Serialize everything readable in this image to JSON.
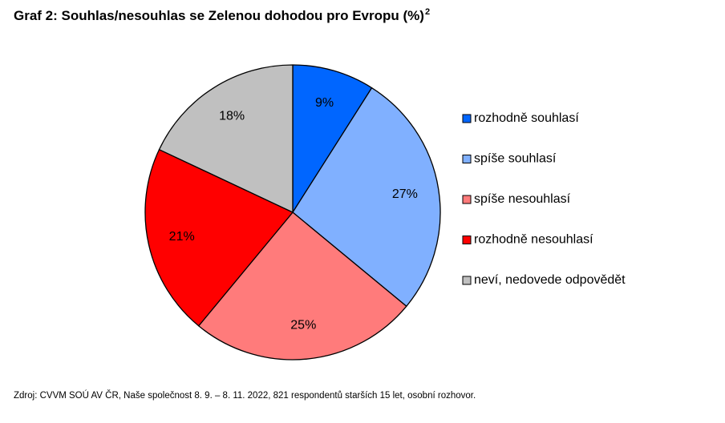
{
  "title": "Graf 2: Souhlas/nesouhlas se Zelenou dohodou pro Evropu (%)",
  "title_superscript": "2",
  "source": "Zdroj: CVVM SOÚ AV ČR, Naše společnost 8. 9. – 8. 11. 2022, 821 respondentů starších 15 let, osobní rozhovor.",
  "chart_data": {
    "type": "pie",
    "title": "Graf 2: Souhlas/nesouhlas se Zelenou dohodou pro Evropu (%)",
    "legend_position": "right",
    "start": "top, clockwise",
    "slices": [
      {
        "label": "rozhodně souhlasí",
        "value": 9,
        "display": "9%",
        "color": "#0066ff"
      },
      {
        "label": "spíše souhlasí",
        "value": 27,
        "display": "27%",
        "color": "#80b0ff"
      },
      {
        "label": "spíše nesouhlasí",
        "value": 25,
        "display": "25%",
        "color": "#ff7b7b"
      },
      {
        "label": "rozhodně nesouhlasí",
        "value": 21,
        "display": "21%",
        "color": "#ff0000"
      },
      {
        "label": "neví, nedovede odpovědět",
        "value": 18,
        "display": "18%",
        "color": "#c0c0c0"
      }
    ]
  }
}
